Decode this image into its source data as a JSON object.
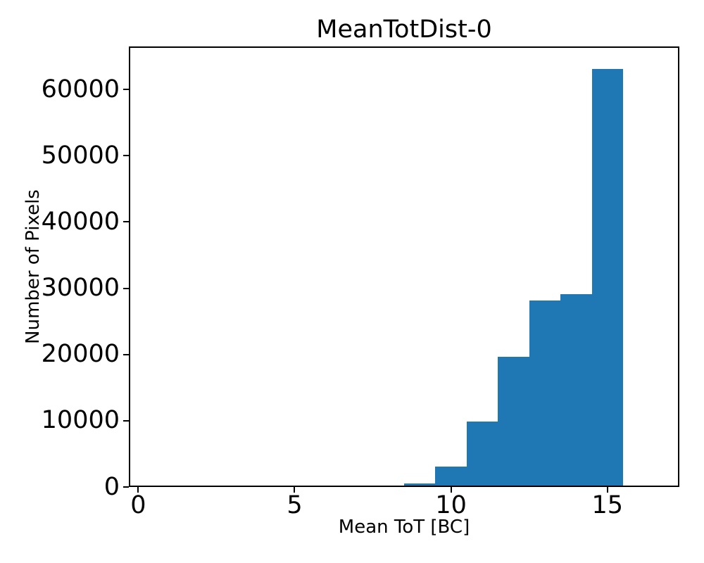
{
  "figure": {
    "background": "#ffffff",
    "text_color": "#000000"
  },
  "chart_data": {
    "type": "bar",
    "subtype": "histogram",
    "title": "MeanTotDist-0",
    "xlabel": "Mean ToT [BC]",
    "ylabel": "Number of Pixels",
    "bar_color": "#1f77b4",
    "bin_edges": [
      7.5,
      8.5,
      9.5,
      10.5,
      11.5,
      12.5,
      13.5,
      14.5,
      15.5
    ],
    "counts": [
      200,
      550,
      3050,
      9900,
      19650,
      28100,
      29150,
      63150
    ],
    "xlim": [
      -0.3,
      17.3
    ],
    "ylim": [
      0,
      66500
    ],
    "xticks": [
      0,
      5,
      10,
      15
    ],
    "yticks": [
      0,
      10000,
      20000,
      30000,
      40000,
      50000,
      60000
    ],
    "grid": false,
    "legend": null
  }
}
